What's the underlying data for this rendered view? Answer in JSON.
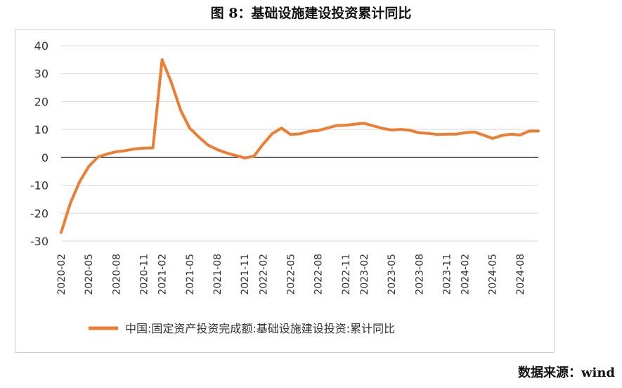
{
  "page": {
    "title": "图 8：基础设施建设投资累计同比",
    "source": "数据来源：wind"
  },
  "chart_data": {
    "type": "line",
    "title": "图 8：基础设施建设投资累计同比",
    "xlabel": "",
    "ylabel": "",
    "ylim": [
      -30,
      40
    ],
    "yticks": [
      40,
      30,
      20,
      10,
      0,
      -10,
      -20,
      -30
    ],
    "x": [
      "2020-02",
      "2020-03",
      "2020-04",
      "2020-05",
      "2020-06",
      "2020-07",
      "2020-08",
      "2020-09",
      "2020-10",
      "2020-11",
      "2020-12",
      "2021-02",
      "2021-03",
      "2021-04",
      "2021-05",
      "2021-06",
      "2021-07",
      "2021-08",
      "2021-09",
      "2021-10",
      "2021-11",
      "2021-12",
      "2022-02",
      "2022-03",
      "2022-04",
      "2022-05",
      "2022-06",
      "2022-07",
      "2022-08",
      "2022-09",
      "2022-10",
      "2022-11",
      "2022-12",
      "2023-02",
      "2023-03",
      "2023-04",
      "2023-05",
      "2023-06",
      "2023-07",
      "2023-08",
      "2023-09",
      "2023-10",
      "2023-11",
      "2023-12",
      "2024-02",
      "2024-03",
      "2024-04",
      "2024-05",
      "2024-06",
      "2024-07",
      "2024-08",
      "2024-09",
      "2024-10"
    ],
    "xticks": [
      "2020-02",
      "2020-05",
      "2020-08",
      "2020-11",
      "2021-02",
      "2021-05",
      "2021-08",
      "2021-11",
      "2022-02",
      "2022-05",
      "2022-08",
      "2022-11",
      "2023-02",
      "2023-05",
      "2023-08",
      "2023-11",
      "2024-02",
      "2024-05",
      "2024-08"
    ],
    "series": [
      {
        "name": "中国:固定资产投资完成额:基础设施建设投资:累计同比",
        "color": "#ED7D31",
        "values": [
          -26.9,
          -16.4,
          -8.8,
          -3.3,
          0.1,
          1.2,
          2.0,
          2.4,
          3.0,
          3.3,
          3.4,
          35.0,
          26.9,
          17.0,
          10.5,
          7.3,
          4.4,
          2.8,
          1.6,
          0.7,
          -0.2,
          0.4,
          4.7,
          8.5,
          10.5,
          8.2,
          8.4,
          9.3,
          9.6,
          10.5,
          11.4,
          11.5,
          11.9,
          12.2,
          11.3,
          10.4,
          9.8,
          10.0,
          9.7,
          8.8,
          8.6,
          8.2,
          8.3,
          8.3,
          8.8,
          9.1,
          8.0,
          6.8,
          7.8,
          8.3,
          8.0,
          9.4,
          9.4
        ]
      }
    ],
    "grid": true,
    "legend_position": "bottom"
  }
}
